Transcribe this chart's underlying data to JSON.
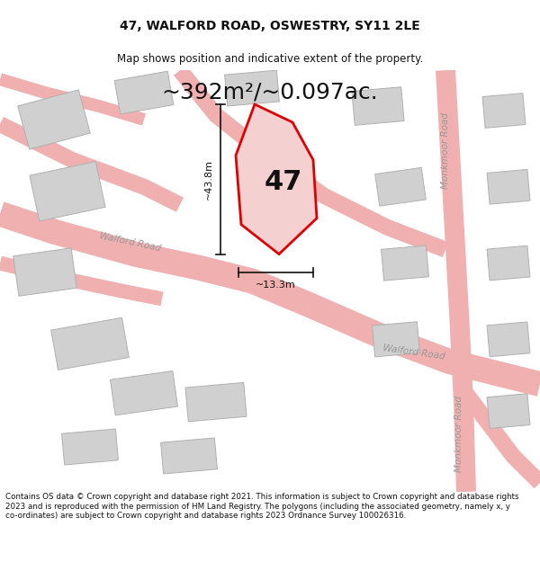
{
  "title_line1": "47, WALFORD ROAD, OSWESTRY, SY11 2LE",
  "title_line2": "Map shows position and indicative extent of the property.",
  "area_text": "~392m²/~0.097ac.",
  "label_47": "47",
  "dim_vertical": "~43.8m",
  "dim_horizontal": "~13.3m",
  "road_label_walford1": "Walford Road",
  "road_label_walford2": "Walford Road",
  "road_label_monkmoor1": "Monkmoor Road",
  "road_label_monkmoor2": "Monkmoor Road",
  "footer_text": "Contains OS data © Crown copyright and database right 2021. This information is subject to Crown copyright and database rights 2023 and is reproduced with the permission of HM Land Registry. The polygons (including the associated geometry, namely x, y co-ordinates) are subject to Crown copyright and database rights 2023 Ordnance Survey 100026316.",
  "bg_color": "#ffffff",
  "map_bg": "#f0f0f0",
  "road_color": "#f0b0b0",
  "road_edge": "#e08080",
  "building_color": "#d0d0d0",
  "building_edge": "#b0b0b0",
  "highlight_color": "#dd0000",
  "highlight_fill": "#f5d0d0",
  "dim_color": "#111111",
  "text_color": "#111111",
  "road_text_color": "#999999",
  "title_fontsize": 10,
  "subtitle_fontsize": 8.5,
  "area_fontsize": 18,
  "label_fontsize": 22,
  "dim_fontsize": 8,
  "road_label_fontsize": 7.5,
  "footer_fontsize": 6.3
}
